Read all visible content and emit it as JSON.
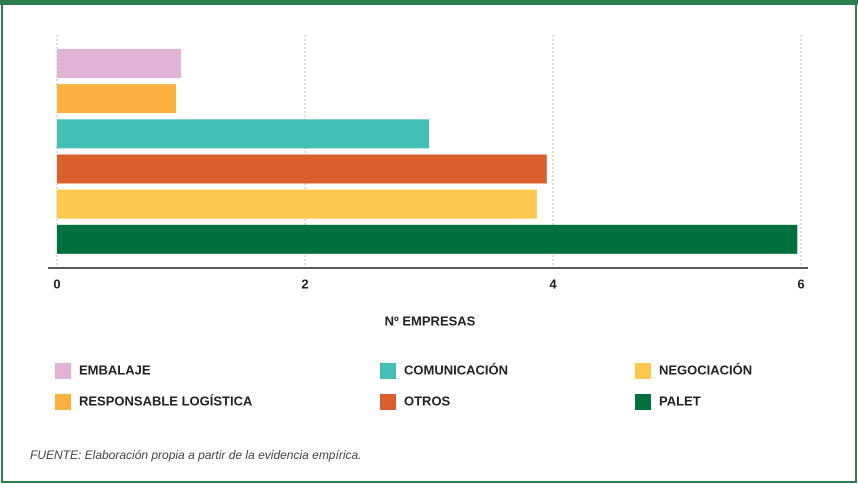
{
  "chart_data": {
    "type": "bar",
    "orientation": "horizontal",
    "categories": [
      "EMBALAJE",
      "RESPONSABLE LOGÍSTICA",
      "COMUNICACIÓN",
      "OTROS",
      "NEGOCIACIÓN",
      "PALET"
    ],
    "values": [
      1,
      0.96,
      3,
      3.95,
      3.87,
      5.97
    ],
    "colors": [
      "#e2b3d6",
      "#fbb040",
      "#43bfb5",
      "#d95f2e",
      "#fec84c",
      "#00703c"
    ],
    "xlim": [
      0,
      6
    ],
    "xticks": [
      0,
      2,
      4,
      6
    ],
    "grid": true,
    "xlabel": "Nº EMPRESAS",
    "source": "FUENTE: Elaboración propia a partir de la evidencia empírica."
  }
}
